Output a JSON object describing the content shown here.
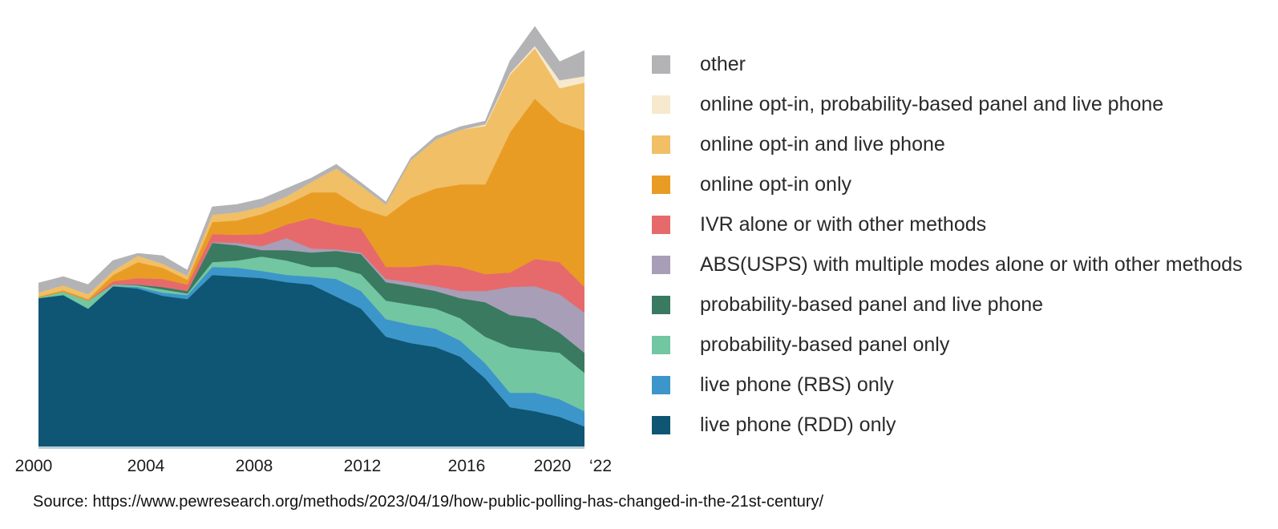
{
  "chart_data": {
    "type": "area",
    "stacked": true,
    "title": "",
    "xlabel": "",
    "ylabel": "",
    "grid": false,
    "legend_position": "right",
    "values_unit": "relative stacked height (chart shows no y-axis); peak total 524 occurs in 2020",
    "x_years": [
      2000,
      2001,
      2002,
      2003,
      2004,
      2005,
      2006,
      2007,
      2008,
      2009,
      2010,
      2011,
      2012,
      2013,
      2014,
      2015,
      2016,
      2017,
      2018,
      2019,
      2020,
      2021,
      2022
    ],
    "x_tick_labels": [
      "2000",
      "2004",
      "2008",
      "2012",
      "2016",
      "2020",
      "‘22"
    ],
    "x_tick_years": [
      2000,
      2004,
      2008,
      2012,
      2016,
      2020,
      2022
    ],
    "series_bottom_to_top": [
      {
        "id": "live-phone-rdd-only",
        "name": "live phone (RDD) only",
        "color": "#0e5673",
        "values": [
          185,
          189,
          172,
          200,
          197,
          188,
          184,
          214,
          212,
          210,
          205,
          202,
          187,
          172,
          137,
          129,
          124,
          112,
          85,
          49,
          44,
          37,
          25
        ]
      },
      {
        "id": "live-phone-rbs-only",
        "name": "live phone (RBS) only",
        "color": "#3d96c9",
        "values": [
          0,
          0,
          0,
          0,
          2,
          4,
          5,
          10,
          11,
          9,
          9,
          10,
          22,
          22,
          22,
          23,
          23,
          20,
          19,
          18,
          23,
          22,
          19
        ]
      },
      {
        "id": "probability-based-panel-only",
        "name": "probability-based panel only",
        "color": "#72c6a2",
        "values": [
          1,
          4,
          10,
          2,
          2,
          4,
          2,
          6,
          9,
          18,
          18,
          12,
          15,
          21,
          23,
          25,
          25,
          28,
          33,
          57,
          53,
          58,
          48
        ]
      },
      {
        "id": "probability-based-panel-and-live-phone",
        "name": "probability-based panel and live phone",
        "color": "#3a7a61",
        "values": [
          0,
          0,
          0,
          0,
          1,
          3,
          3,
          24,
          19,
          8,
          13,
          18,
          20,
          25,
          23,
          23,
          22,
          25,
          43,
          40,
          40,
          25,
          25
        ]
      },
      {
        "id": "abs-usps-multiple-modes",
        "name": "ABS(USPS) with multiple modes alone or with other methods",
        "color": "#a89eb7",
        "values": [
          0,
          0,
          0,
          0,
          0,
          0,
          0,
          1,
          3,
          5,
          15,
          5,
          2,
          2,
          4,
          5,
          6,
          9,
          14,
          35,
          40,
          48,
          50
        ]
      },
      {
        "id": "ivr-alone-or-with-other-methods",
        "name": "IVR alone or with other methods",
        "color": "#e66a6c",
        "values": [
          0,
          0,
          0,
          4,
          8,
          10,
          8,
          10,
          10,
          15,
          17,
          38,
          31,
          30,
          15,
          19,
          27,
          30,
          21,
          18,
          34,
          40,
          32
        ]
      },
      {
        "id": "online-opt-in-only",
        "name": "online opt-in only",
        "color": "#e99c24",
        "values": [
          1,
          2,
          2,
          8,
          20,
          14,
          6,
          15,
          18,
          25,
          25,
          32,
          40,
          25,
          63,
          86,
          95,
          103,
          112,
          175,
          200,
          175,
          195
        ]
      },
      {
        "id": "online-opt-in-and-live-phone",
        "name": "online opt-in and live phone",
        "color": "#f1bf66",
        "values": [
          5,
          6,
          6,
          5,
          8,
          5,
          5,
          9,
          10,
          9,
          10,
          13,
          30,
          28,
          15,
          47,
          61,
          68,
          73,
          72,
          63,
          42,
          60
        ]
      },
      {
        "id": "online-opt-in-probability-based-panel-and-live-phone",
        "name": "online opt-in, probability-based panel and live phone",
        "color": "#f7e9cd",
        "values": [
          0,
          0,
          0,
          0,
          0,
          0,
          0,
          0,
          0,
          0,
          0,
          0,
          0,
          0,
          0,
          0,
          0,
          0,
          2,
          2,
          3,
          10,
          8
        ]
      },
      {
        "id": "other",
        "name": "other",
        "color": "#b3b3b5",
        "values": [
          12,
          11,
          12,
          13,
          3,
          10,
          7,
          10,
          10,
          10,
          10,
          5,
          5,
          4,
          3,
          3,
          4,
          4,
          4,
          15,
          24,
          23,
          32
        ]
      }
    ],
    "legend": [
      {
        "label": "other",
        "color": "#b3b3b5"
      },
      {
        "label": "online opt-in, probability-based panel and live phone",
        "color": "#f7e9cd"
      },
      {
        "label": "online opt-in and live phone",
        "color": "#f1bf66"
      },
      {
        "label": "online opt-in only",
        "color": "#e99c24"
      },
      {
        "label": "IVR alone or with other methods",
        "color": "#e66a6c"
      },
      {
        "label": "ABS(USPS) with multiple modes alone or with other methods",
        "color": "#a89eb7"
      },
      {
        "label": "probability-based panel and live phone",
        "color": "#3a7a61"
      },
      {
        "label": "probability-based panel only",
        "color": "#72c6a2"
      },
      {
        "label": "live phone (RBS) only",
        "color": "#3d96c9"
      },
      {
        "label": "live phone (RDD) only",
        "color": "#0e5673"
      }
    ]
  },
  "source_line": "Source: https://www.pewresearch.org/methods/2023/04/19/how-public-polling-has-changed-in-the-21st-century/"
}
